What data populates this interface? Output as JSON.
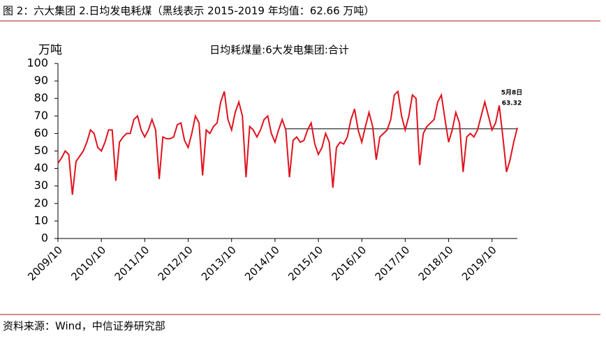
{
  "header": {
    "title": "图 2：六大集团 2.日均发电耗煤（黑线表示 2015-2019 年均值：62.66 万吨）"
  },
  "chart_data": {
    "type": "line",
    "title": "日均耗煤量:6大发电集团:合计",
    "y_label": "万吨",
    "categories": [
      "2009/10",
      null,
      null,
      null,
      null,
      null,
      null,
      null,
      null,
      null,
      null,
      null,
      "2010/10",
      null,
      null,
      null,
      null,
      null,
      null,
      null,
      null,
      null,
      null,
      null,
      "2011/10",
      null,
      null,
      null,
      null,
      null,
      null,
      null,
      null,
      null,
      null,
      null,
      "2012/10",
      null,
      null,
      null,
      null,
      null,
      null,
      null,
      null,
      null,
      null,
      null,
      "2013/10",
      null,
      null,
      null,
      null,
      null,
      null,
      null,
      null,
      null,
      null,
      null,
      "2014/10",
      null,
      null,
      null,
      null,
      null,
      null,
      null,
      null,
      null,
      null,
      null,
      "2015/10",
      null,
      null,
      null,
      null,
      null,
      null,
      null,
      null,
      null,
      null,
      null,
      "2016/10",
      null,
      null,
      null,
      null,
      null,
      null,
      null,
      null,
      null,
      null,
      null,
      "2017/10",
      null,
      null,
      null,
      null,
      null,
      null,
      null,
      null,
      null,
      null,
      null,
      "2018/10",
      null,
      null,
      null,
      null,
      null,
      null,
      null,
      null,
      null,
      null,
      null,
      "2019/10",
      null,
      null,
      null,
      null,
      null,
      null,
      null
    ],
    "series": [
      {
        "name": "日均耗煤量:6大发电集团:合计",
        "color": "#e0121d",
        "values": [
          43,
          46,
          50,
          48,
          25,
          44,
          47,
          50,
          55,
          62,
          60,
          52,
          50,
          55,
          62,
          62,
          33,
          55,
          58,
          60,
          60,
          68,
          70,
          62,
          58,
          62,
          68,
          62,
          34,
          58,
          57,
          57,
          58,
          65,
          66,
          56,
          52,
          60,
          70,
          66,
          36,
          62,
          60,
          64,
          66,
          78,
          84,
          68,
          62,
          72,
          78,
          70,
          35,
          64,
          62,
          58,
          62,
          68,
          70,
          60,
          55,
          62,
          68,
          62,
          35,
          56,
          58,
          55,
          56,
          62,
          66,
          54,
          48,
          52,
          60,
          55,
          29,
          52,
          55,
          54,
          58,
          68,
          74,
          62,
          55,
          64,
          72,
          64,
          45,
          58,
          60,
          62,
          68,
          82,
          84,
          70,
          62,
          70,
          82,
          80,
          42,
          60,
          64,
          66,
          68,
          78,
          82,
          68,
          55,
          62,
          72,
          66,
          38,
          58,
          60,
          58,
          62,
          70,
          78,
          70,
          62,
          66,
          76,
          58,
          38,
          45,
          55,
          63.32
        ]
      }
    ],
    "reference_value": 62.66,
    "annotation": {
      "label": "5月8日",
      "value": 63.32
    },
    "ylim": [
      0,
      100
    ],
    "yticks": [
      0,
      10,
      20,
      30,
      40,
      50,
      60,
      70,
      80,
      90,
      100
    ]
  },
  "footer": {
    "source": "资料来源：Wind，中信证券研究部"
  }
}
